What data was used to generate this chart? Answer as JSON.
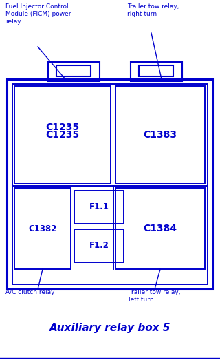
{
  "bg_color": "#ffffff",
  "draw_color": "#0000cd",
  "title": "Auxiliary relay box 5",
  "title_fontsize": 11,
  "labels": {
    "top_left": "Fuel Injector Control\nModule (FICM) power\nrelay",
    "top_right": "Trailer tow relay,\nright turn",
    "bottom_left": "A/C clutch relay",
    "bottom_right": "Trailer tow relay,\nleft turn"
  },
  "lw_outer": 2.2,
  "lw_inner": 1.4,
  "lw_tab": 1.5
}
